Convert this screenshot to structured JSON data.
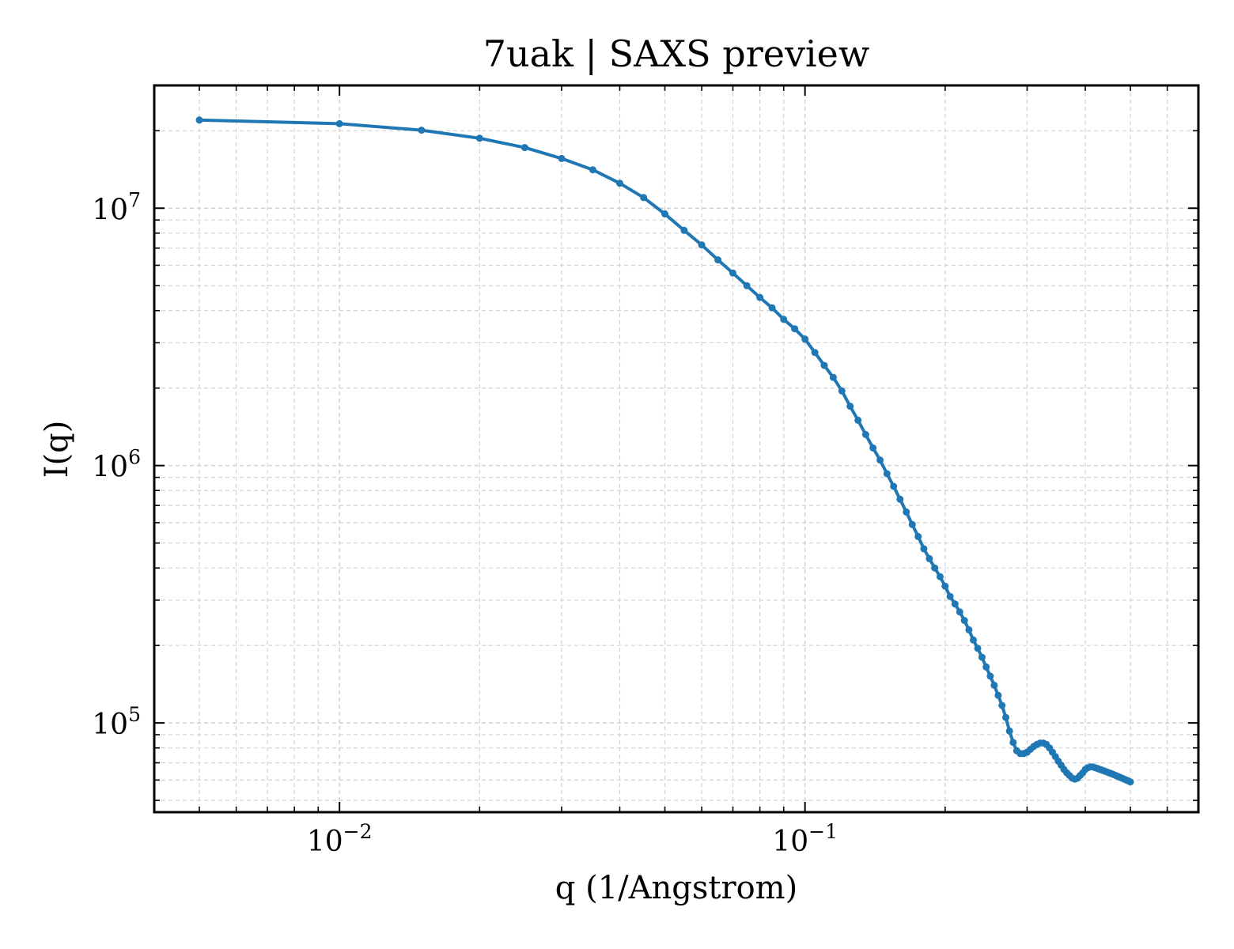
{
  "chart_data": {
    "type": "line",
    "title": "7uak | SAXS preview",
    "xlabel": "q (1/Angstrom)",
    "ylabel": "I(q)",
    "xscale": "log",
    "yscale": "log",
    "xlim": [
      0.004,
      0.7
    ],
    "ylim": [
      45000,
      30000000
    ],
    "grid": true,
    "legend": "none",
    "xticks": [
      {
        "base": "10",
        "exp": "−2",
        "value": 0.01
      },
      {
        "base": "10",
        "exp": "−1",
        "value": 0.1
      }
    ],
    "yticks": [
      {
        "base": "10",
        "exp": "5",
        "value": 100000
      },
      {
        "base": "10",
        "exp": "6",
        "value": 1000000
      },
      {
        "base": "10",
        "exp": "7",
        "value": 10000000
      }
    ],
    "colors": {
      "line": "#1f77b4",
      "grid": "#d3d3d3",
      "frame": "#000000"
    },
    "series": [
      {
        "x": [
          0.005,
          0.01,
          0.015,
          0.02,
          0.025,
          0.03,
          0.035,
          0.04,
          0.045,
          0.05,
          0.055,
          0.06,
          0.065,
          0.07,
          0.075,
          0.08,
          0.085,
          0.09,
          0.095,
          0.1,
          0.105,
          0.11,
          0.115,
          0.12,
          0.125,
          0.13,
          0.135,
          0.14,
          0.145,
          0.15,
          0.155,
          0.16,
          0.165,
          0.17,
          0.175,
          0.18,
          0.185,
          0.19,
          0.195,
          0.2,
          0.205,
          0.21,
          0.215,
          0.22,
          0.225,
          0.23,
          0.235,
          0.24,
          0.245,
          0.25,
          0.255,
          0.26,
          0.265,
          0.27,
          0.275,
          0.28,
          0.285,
          0.29,
          0.295,
          0.3,
          0.305,
          0.31,
          0.315,
          0.32,
          0.325,
          0.33,
          0.335,
          0.34,
          0.345,
          0.35,
          0.355,
          0.36,
          0.365,
          0.37,
          0.375,
          0.38,
          0.385,
          0.39,
          0.395,
          0.4,
          0.405,
          0.41,
          0.415,
          0.42,
          0.425,
          0.43,
          0.435,
          0.44,
          0.445,
          0.45,
          0.455,
          0.46,
          0.465,
          0.47,
          0.475,
          0.48,
          0.485,
          0.49,
          0.495,
          0.5
        ],
        "y": [
          22000000,
          21300000,
          20100000,
          18700000,
          17200000,
          15600000,
          14100000,
          12500000,
          11000000,
          9500000,
          8200000,
          7200000,
          6300000,
          5600000,
          5000000,
          4500000,
          4100000,
          3700000,
          3400000,
          3100000,
          2750000,
          2450000,
          2200000,
          1950000,
          1700000,
          1500000,
          1320000,
          1170000,
          1050000,
          930000,
          830000,
          740000,
          660000,
          590000,
          530000,
          475000,
          435000,
          400000,
          370000,
          340000,
          310000,
          290000,
          270000,
          250000,
          230000,
          210000,
          195000,
          180000,
          165000,
          152000,
          140000,
          128000,
          117000,
          105000,
          93000,
          84000,
          78000,
          76000,
          76000,
          77000,
          79000,
          81000,
          82500,
          83500,
          83500,
          82500,
          80000,
          77000,
          74000,
          71000,
          68500,
          66000,
          64000,
          62500,
          61000,
          60500,
          61000,
          62500,
          64000,
          66000,
          67000,
          67500,
          67500,
          67000,
          66500,
          66000,
          65500,
          65000,
          64500,
          64000,
          63500,
          63000,
          62500,
          62000,
          61500,
          61000,
          60500,
          60000,
          59500,
          59000
        ]
      }
    ]
  }
}
